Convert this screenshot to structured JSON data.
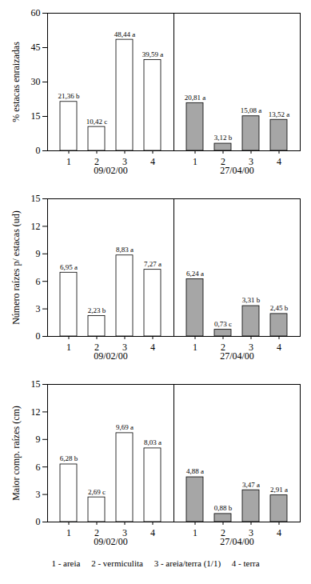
{
  "chart_data": [
    {
      "type": "bar",
      "y_label": "% estacas enraizadas",
      "categories": [
        "1",
        "2",
        "3",
        "4"
      ],
      "series": [
        {
          "name": "09/02/00",
          "color": "#ffffff",
          "values": [
            21.36,
            10.42,
            48.44,
            39.59
          ],
          "value_labels": [
            "21,36 b",
            "10,42 c",
            "48,44 a",
            "39,59 a"
          ]
        },
        {
          "name": "27/04/00",
          "color": "#a6a6a6",
          "values": [
            20.81,
            3.12,
            15.08,
            13.52
          ],
          "value_labels": [
            "20,81 a",
            "3,12 b",
            "15,08 a",
            "13,52 a"
          ]
        }
      ],
      "ylim": [
        0,
        60
      ],
      "yticks": [
        0,
        15,
        30,
        45,
        60
      ],
      "data_labels": true
    },
    {
      "type": "bar",
      "y_label": "Número raízes p/ estacas (ud)",
      "categories": [
        "1",
        "2",
        "3",
        "4"
      ],
      "series": [
        {
          "name": "09/02/00",
          "color": "#ffffff",
          "values": [
            6.95,
            2.23,
            8.83,
            7.27
          ],
          "value_labels": [
            "6,95 a",
            "2,23 b",
            "8,83 a",
            "7,27 a"
          ]
        },
        {
          "name": "27/04/00",
          "color": "#a6a6a6",
          "values": [
            6.24,
            0.73,
            3.31,
            2.45
          ],
          "value_labels": [
            "6,24 a",
            "0,73 c",
            "3,31 b",
            "2,45 b"
          ]
        }
      ],
      "ylim": [
        0,
        15
      ],
      "yticks": [
        0,
        3,
        6,
        9,
        12,
        15
      ],
      "data_labels": true
    },
    {
      "type": "bar",
      "y_label": "Maior comp. raízes (cm)",
      "categories": [
        "1",
        "2",
        "3",
        "4"
      ],
      "series": [
        {
          "name": "09/02/00",
          "color": "#ffffff",
          "values": [
            6.28,
            2.69,
            9.69,
            8.03
          ],
          "value_labels": [
            "6,28 b",
            "2,69 c",
            "9,69 a",
            "8,03 a"
          ]
        },
        {
          "name": "27/04/00",
          "color": "#a6a6a6",
          "values": [
            4.88,
            0.88,
            3.47,
            2.91
          ],
          "value_labels": [
            "4,88 a",
            "0,88 b",
            "3,47 a",
            "2,91 a"
          ]
        }
      ],
      "ylim": [
        0,
        15
      ],
      "yticks": [
        0,
        3,
        6,
        9,
        12,
        15
      ],
      "data_labels": true
    }
  ],
  "caption": "1 - areia     2 - vermiculita     3 - areia/terra (1/1)     4 - terra"
}
